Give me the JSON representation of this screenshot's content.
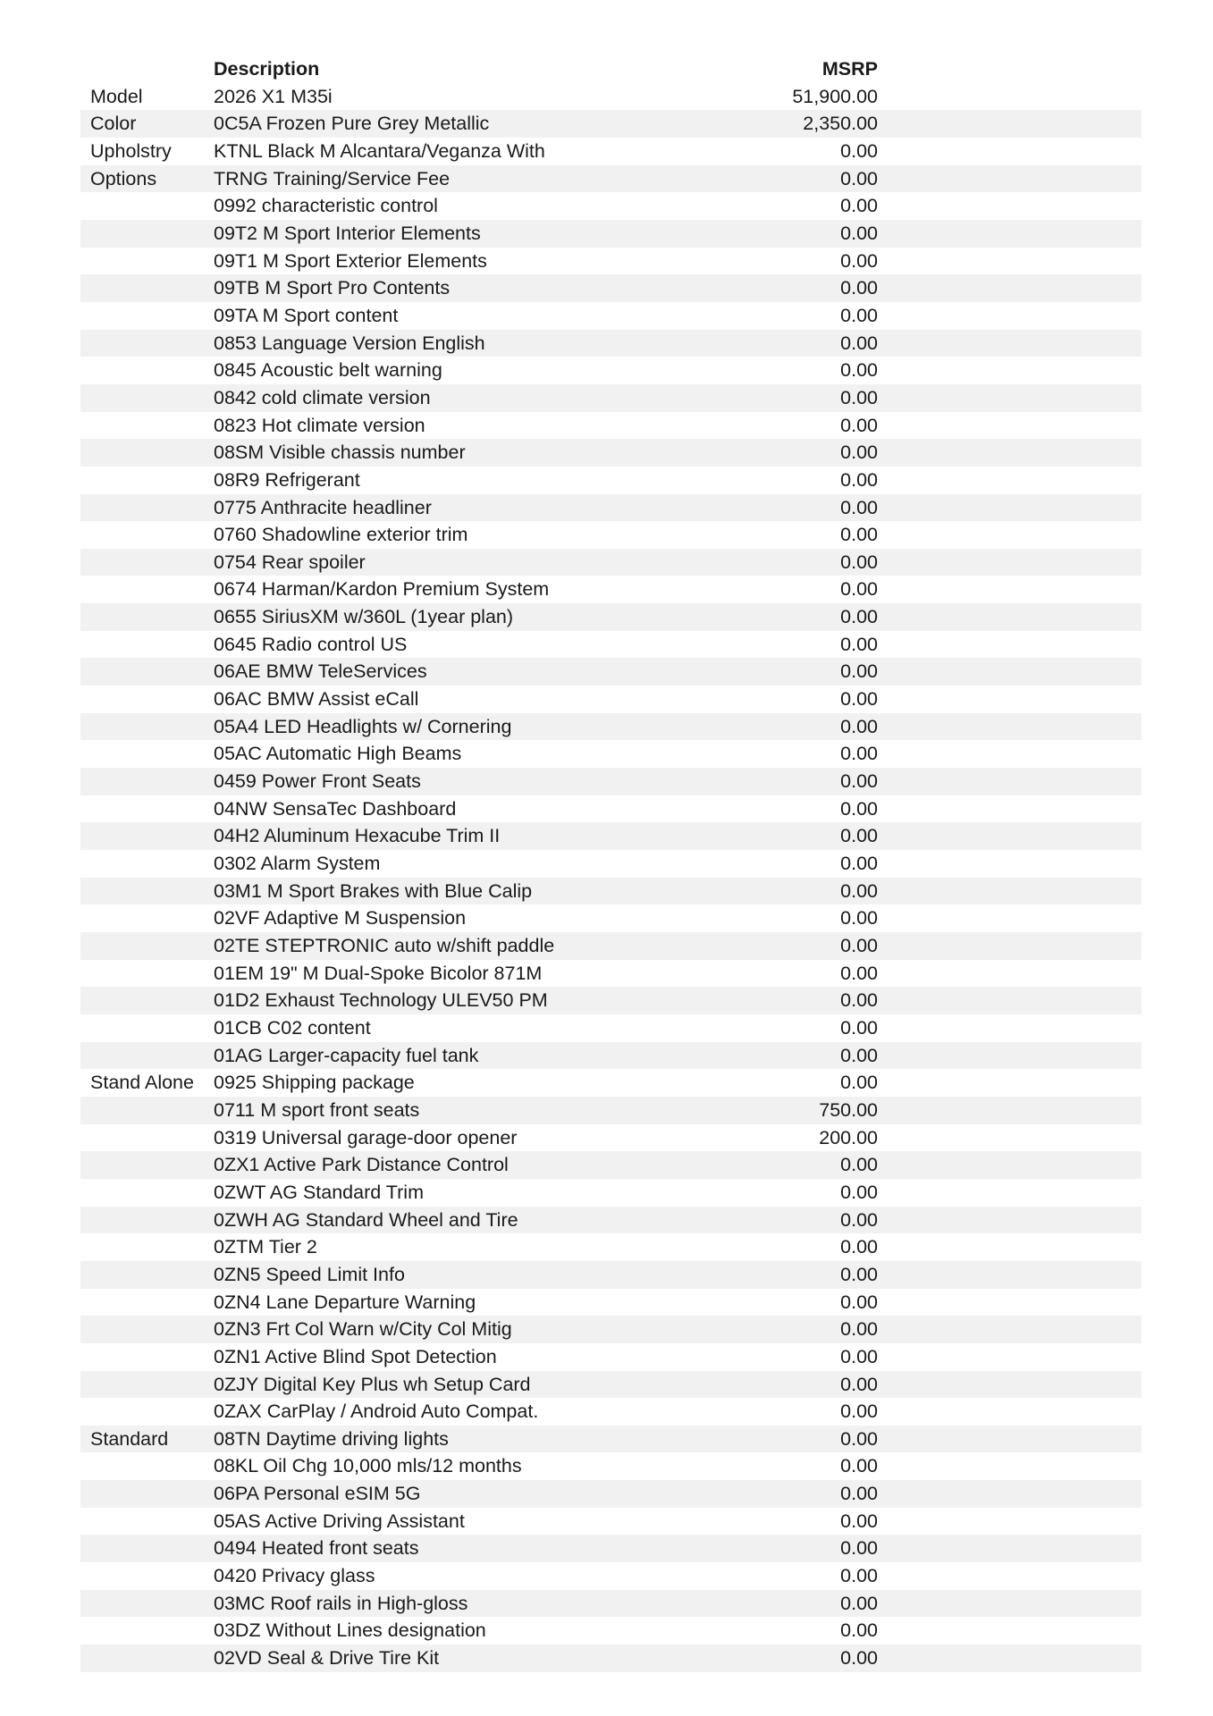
{
  "header": {
    "description": "Description",
    "msrp": "MSRP"
  },
  "rows": [
    {
      "category": "Model",
      "description": "2026 X1 M35i",
      "msrp": "51,900.00"
    },
    {
      "category": "Color",
      "description": "0C5A Frozen Pure Grey Metallic",
      "msrp": "2,350.00"
    },
    {
      "category": "Upholstry",
      "description": "KTNL Black M Alcantara/Veganza With",
      "msrp": "0.00"
    },
    {
      "category": "Options",
      "description": "TRNG Training/Service Fee",
      "msrp": "0.00"
    },
    {
      "category": "",
      "description": "0992 characteristic control",
      "msrp": "0.00"
    },
    {
      "category": "",
      "description": "09T2 M Sport Interior Elements",
      "msrp": "0.00"
    },
    {
      "category": "",
      "description": "09T1 M Sport Exterior Elements",
      "msrp": "0.00"
    },
    {
      "category": "",
      "description": "09TB M Sport Pro Contents",
      "msrp": "0.00"
    },
    {
      "category": "",
      "description": "09TA M Sport content",
      "msrp": "0.00"
    },
    {
      "category": "",
      "description": "0853 Language Version English",
      "msrp": "0.00"
    },
    {
      "category": "",
      "description": "0845 Acoustic belt warning",
      "msrp": "0.00"
    },
    {
      "category": "",
      "description": "0842 cold climate version",
      "msrp": "0.00"
    },
    {
      "category": "",
      "description": "0823 Hot climate version",
      "msrp": "0.00"
    },
    {
      "category": "",
      "description": "08SM Visible chassis number",
      "msrp": "0.00"
    },
    {
      "category": "",
      "description": "08R9 Refrigerant",
      "msrp": "0.00"
    },
    {
      "category": "",
      "description": "0775 Anthracite headliner",
      "msrp": "0.00"
    },
    {
      "category": "",
      "description": "0760 Shadowline exterior trim",
      "msrp": "0.00"
    },
    {
      "category": "",
      "description": "0754 Rear spoiler",
      "msrp": "0.00"
    },
    {
      "category": "",
      "description": "0674 Harman/Kardon Premium System",
      "msrp": "0.00"
    },
    {
      "category": "",
      "description": "0655 SiriusXM w/360L (1year plan)",
      "msrp": "0.00"
    },
    {
      "category": "",
      "description": "0645 Radio control US",
      "msrp": "0.00"
    },
    {
      "category": "",
      "description": "06AE BMW TeleServices",
      "msrp": "0.00"
    },
    {
      "category": "",
      "description": "06AC BMW Assist eCall",
      "msrp": "0.00"
    },
    {
      "category": "",
      "description": "05A4 LED Headlights w/ Cornering",
      "msrp": "0.00"
    },
    {
      "category": "",
      "description": "05AC Automatic High Beams",
      "msrp": "0.00"
    },
    {
      "category": "",
      "description": "0459 Power Front Seats",
      "msrp": "0.00"
    },
    {
      "category": "",
      "description": "04NW SensaTec Dashboard",
      "msrp": "0.00"
    },
    {
      "category": "",
      "description": "04H2 Aluminum Hexacube Trim II",
      "msrp": "0.00"
    },
    {
      "category": "",
      "description": "0302 Alarm System",
      "msrp": "0.00"
    },
    {
      "category": "",
      "description": "03M1 M Sport Brakes with Blue Calip",
      "msrp": "0.00"
    },
    {
      "category": "",
      "description": "02VF Adaptive M Suspension",
      "msrp": "0.00"
    },
    {
      "category": "",
      "description": "02TE STEPTRONIC auto w/shift paddle",
      "msrp": "0.00"
    },
    {
      "category": "",
      "description": "01EM 19\" M Dual-Spoke Bicolor 871M",
      "msrp": "0.00"
    },
    {
      "category": "",
      "description": "01D2 Exhaust Technology ULEV50 PM",
      "msrp": "0.00"
    },
    {
      "category": "",
      "description": "01CB C02 content",
      "msrp": "0.00"
    },
    {
      "category": "",
      "description": "01AG Larger-capacity fuel tank",
      "msrp": "0.00"
    },
    {
      "category": "Stand Alone",
      "description": "0925 Shipping package",
      "msrp": "0.00"
    },
    {
      "category": "",
      "description": "0711 M sport front seats",
      "msrp": "750.00"
    },
    {
      "category": "",
      "description": "0319 Universal garage-door opener",
      "msrp": "200.00"
    },
    {
      "category": "",
      "description": "0ZX1 Active Park Distance Control",
      "msrp": "0.00"
    },
    {
      "category": "",
      "description": "0ZWT AG Standard Trim",
      "msrp": "0.00"
    },
    {
      "category": "",
      "description": "0ZWH AG Standard Wheel and Tire",
      "msrp": "0.00"
    },
    {
      "category": "",
      "description": "0ZTM Tier 2",
      "msrp": "0.00"
    },
    {
      "category": "",
      "description": "0ZN5 Speed Limit Info",
      "msrp": "0.00"
    },
    {
      "category": "",
      "description": "0ZN4 Lane Departure Warning",
      "msrp": "0.00"
    },
    {
      "category": "",
      "description": "0ZN3 Frt Col Warn w/City Col Mitig",
      "msrp": "0.00"
    },
    {
      "category": "",
      "description": "0ZN1 Active Blind Spot Detection",
      "msrp": "0.00"
    },
    {
      "category": "",
      "description": "0ZJY Digital Key Plus wh Setup Card",
      "msrp": "0.00"
    },
    {
      "category": "",
      "description": "0ZAX CarPlay / Android Auto Compat.",
      "msrp": "0.00"
    },
    {
      "category": "Standard",
      "description": "08TN Daytime driving lights",
      "msrp": "0.00"
    },
    {
      "category": "",
      "description": "08KL Oil Chg 10,000 mls/12 months",
      "msrp": "0.00"
    },
    {
      "category": "",
      "description": "06PA Personal eSIM 5G",
      "msrp": "0.00"
    },
    {
      "category": "",
      "description": "05AS Active Driving Assistant",
      "msrp": "0.00"
    },
    {
      "category": "",
      "description": "0494 Heated front seats",
      "msrp": "0.00"
    },
    {
      "category": "",
      "description": "0420 Privacy glass",
      "msrp": "0.00"
    },
    {
      "category": "",
      "description": "03MC Roof rails in High-gloss",
      "msrp": "0.00"
    },
    {
      "category": "",
      "description": "03DZ Without Lines designation",
      "msrp": "0.00"
    },
    {
      "category": "",
      "description": "02VD Seal & Drive Tire Kit",
      "msrp": "0.00"
    }
  ],
  "colors": {
    "row_shade": "#f1f1f1",
    "text": "#1a1a1a"
  }
}
